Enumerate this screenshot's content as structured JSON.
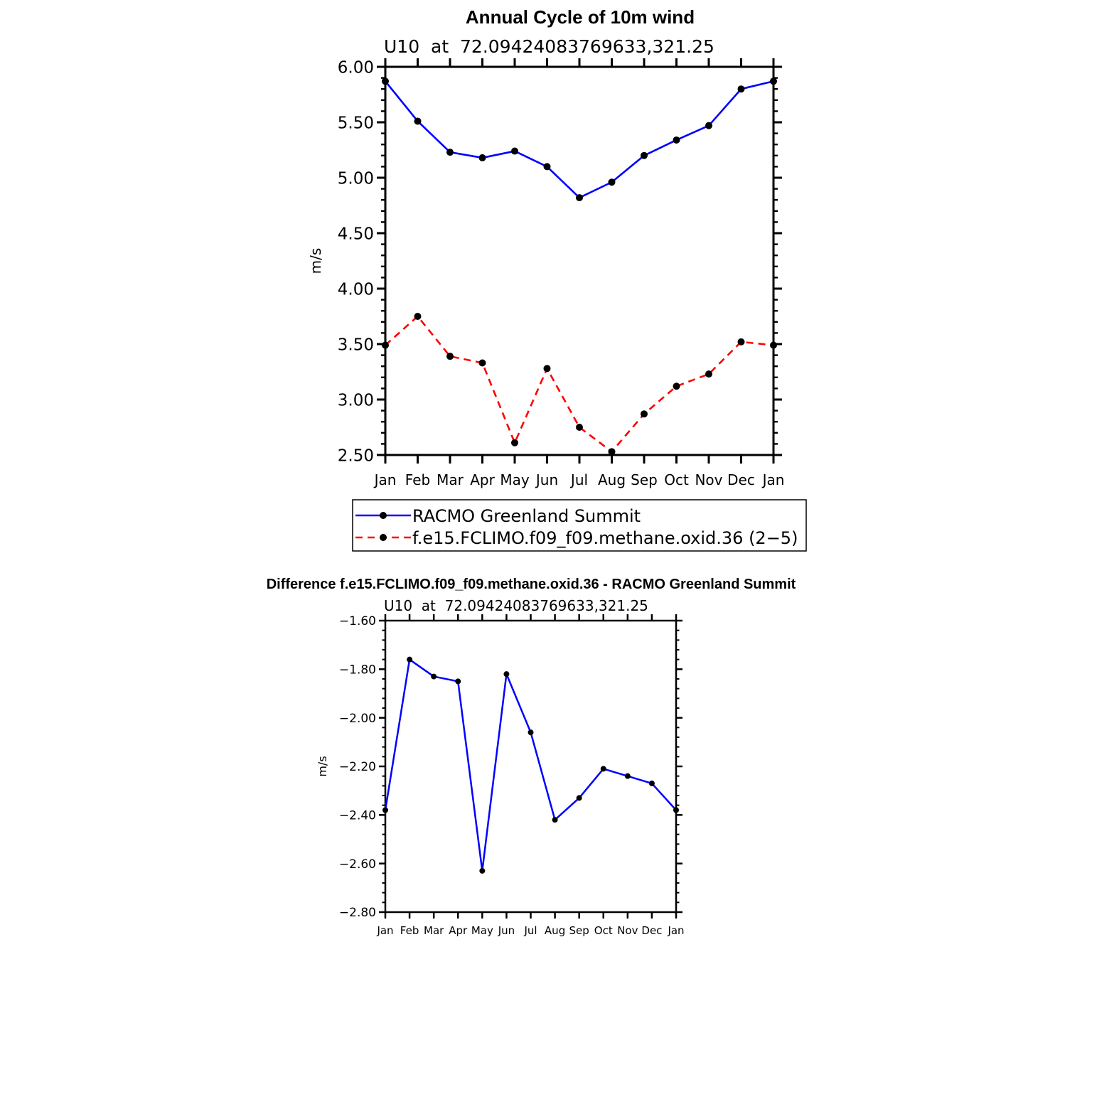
{
  "chart_data": [
    {
      "type": "line",
      "title": "Annual Cycle of 10m wind",
      "subtitle": "U10  at  72.09424083769633,321.25",
      "xlabel": "",
      "ylabel": "m/s",
      "categories": [
        "Jan",
        "Feb",
        "Mar",
        "Apr",
        "May",
        "Jun",
        "Jul",
        "Aug",
        "Sep",
        "Oct",
        "Nov",
        "Dec",
        "Jan"
      ],
      "ylim": [
        2.5,
        6.0
      ],
      "yticks": [
        "2.50",
        "3.00",
        "3.50",
        "4.00",
        "4.50",
        "5.00",
        "5.50",
        "6.00"
      ],
      "grid": false,
      "legend_position": "bottom",
      "series": [
        {
          "name": "RACMO Greenland Summit",
          "color": "#0000ff",
          "dash": "solid",
          "values": [
            5.87,
            5.51,
            5.23,
            5.18,
            5.24,
            5.1,
            4.82,
            4.96,
            5.2,
            5.34,
            5.47,
            5.8,
            5.87
          ]
        },
        {
          "name": "f.e15.FCLIMO.f09_f09.methane.oxid.36 (2−5)",
          "color": "#ff0000",
          "dash": "dashed",
          "values": [
            3.49,
            3.75,
            3.39,
            3.33,
            2.61,
            3.28,
            2.75,
            2.53,
            2.87,
            3.12,
            3.23,
            3.52,
            3.49
          ]
        }
      ]
    },
    {
      "type": "line",
      "title": "Difference f.e15.FCLIMO.f09_f09.methane.oxid.36 - RACMO Greenland Summit",
      "subtitle": "U10  at  72.09424083769633,321.25",
      "xlabel": "",
      "ylabel": "m/s",
      "categories": [
        "Jan",
        "Feb",
        "Mar",
        "Apr",
        "May",
        "Jun",
        "Jul",
        "Aug",
        "Sep",
        "Oct",
        "Nov",
        "Dec",
        "Jan"
      ],
      "ylim": [
        -2.8,
        -1.6
      ],
      "yticks": [
        "−2.80",
        "−2.60",
        "−2.40",
        "−2.20",
        "−2.00",
        "−1.80",
        "−1.60"
      ],
      "grid": false,
      "series": [
        {
          "color": "#0000ff",
          "dash": "solid",
          "values": [
            -2.38,
            -1.76,
            -1.83,
            -1.85,
            -2.63,
            -1.82,
            -2.06,
            -2.42,
            -2.33,
            -2.21,
            -2.24,
            -2.27,
            -2.38
          ]
        }
      ]
    }
  ]
}
